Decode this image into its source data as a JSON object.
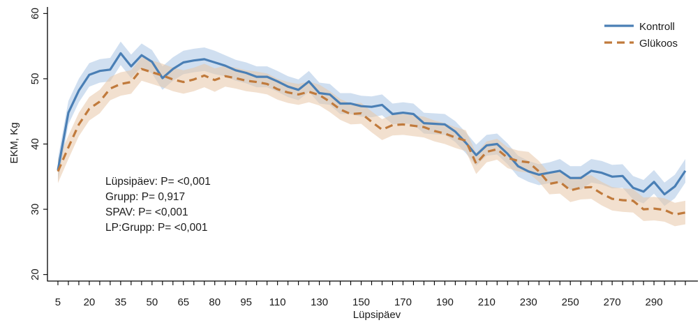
{
  "chart_data": {
    "type": "line",
    "xlabel": "Lüpsipäev",
    "ylabel": "EKM, Kg",
    "xlim": [
      0,
      311
    ],
    "ylim": [
      19,
      61
    ],
    "x_ticks": [
      5,
      20,
      35,
      50,
      65,
      80,
      95,
      110,
      130,
      150,
      170,
      190,
      210,
      230,
      250,
      270,
      290
    ],
    "x_minor_ticks": [
      5,
      10,
      15,
      20,
      25,
      30,
      35,
      40,
      45,
      50,
      55,
      60,
      65,
      70,
      75,
      80,
      85,
      90,
      95,
      100,
      105,
      110,
      115,
      120,
      125,
      130,
      135,
      140,
      145,
      150,
      155,
      160,
      165,
      170,
      175,
      180,
      185,
      190,
      195,
      200,
      205,
      210,
      215,
      220,
      225,
      230,
      235,
      240,
      245,
      250,
      255,
      260,
      265,
      270,
      275,
      280,
      285,
      290,
      295,
      300,
      305
    ],
    "y_ticks": [
      20,
      30,
      40,
      50,
      60
    ],
    "legend_position": "top-right",
    "grid": false,
    "x": [
      5,
      10,
      15,
      20,
      25,
      30,
      35,
      40,
      45,
      50,
      55,
      60,
      65,
      70,
      75,
      80,
      85,
      90,
      95,
      100,
      105,
      110,
      115,
      120,
      125,
      130,
      135,
      140,
      145,
      150,
      155,
      160,
      165,
      170,
      175,
      180,
      185,
      190,
      195,
      200,
      205,
      210,
      215,
      220,
      225,
      230,
      235,
      240,
      245,
      250,
      255,
      260,
      265,
      270,
      275,
      280,
      285,
      290,
      295,
      300,
      305
    ],
    "series": [
      {
        "name": "Kontroll",
        "color": "#4a7fb5",
        "band_color": "#a9c4e3",
        "dash": "solid",
        "values": [
          36.0,
          44.8,
          48.2,
          50.6,
          51.2,
          51.4,
          53.9,
          51.9,
          53.6,
          52.6,
          50.1,
          51.5,
          52.5,
          52.8,
          53.0,
          52.5,
          52.0,
          51.3,
          50.9,
          50.3,
          50.3,
          49.6,
          48.8,
          48.3,
          49.6,
          47.8,
          47.6,
          46.2,
          46.2,
          45.8,
          45.7,
          46.0,
          44.6,
          44.8,
          44.6,
          43.2,
          43.1,
          43.0,
          41.9,
          40.2,
          38.3,
          39.8,
          40.0,
          38.5,
          36.6,
          35.8,
          35.3,
          35.6,
          35.9,
          34.8,
          34.8,
          35.9,
          35.6,
          35.0,
          35.1,
          33.3,
          32.7,
          34.2,
          32.3,
          33.5,
          35.9
        ],
        "band_halfwidth": [
          1.8,
          1.8,
          1.8,
          1.8,
          1.8,
          1.8,
          1.8,
          1.8,
          1.8,
          1.8,
          1.8,
          1.8,
          1.8,
          1.8,
          1.8,
          1.8,
          1.6,
          1.6,
          1.6,
          1.6,
          1.6,
          1.6,
          1.6,
          1.6,
          1.6,
          1.6,
          1.6,
          1.6,
          1.6,
          1.6,
          1.6,
          1.6,
          1.6,
          1.6,
          1.6,
          1.6,
          1.6,
          1.6,
          1.6,
          1.6,
          1.6,
          1.6,
          1.6,
          1.6,
          1.6,
          1.6,
          1.6,
          1.6,
          1.8,
          1.8,
          1.8,
          1.8,
          1.8,
          1.8,
          1.8,
          1.8,
          1.8,
          1.8,
          1.8,
          1.8,
          1.8
        ]
      },
      {
        "name": "Glükoos",
        "color": "#c07a3c",
        "band_color": "#e8c6a8",
        "dash": "dashed",
        "values": [
          35.8,
          39.5,
          43.0,
          45.4,
          46.5,
          48.5,
          49.2,
          49.5,
          51.5,
          51.0,
          50.5,
          49.9,
          49.5,
          49.9,
          50.5,
          49.8,
          50.4,
          50.1,
          49.7,
          49.5,
          49.2,
          48.4,
          47.9,
          47.6,
          48.0,
          47.5,
          46.5,
          45.3,
          44.6,
          44.7,
          43.4,
          42.2,
          42.9,
          43.0,
          42.8,
          42.6,
          42.0,
          41.6,
          41.0,
          40.5,
          37.0,
          38.8,
          39.2,
          37.9,
          37.4,
          37.2,
          35.8,
          33.9,
          34.2,
          32.9,
          33.3,
          33.4,
          32.4,
          31.6,
          31.4,
          31.3,
          30.0,
          30.1,
          29.9,
          29.2,
          29.5
        ],
        "band_halfwidth": [
          1.8,
          1.8,
          1.8,
          1.8,
          1.8,
          1.8,
          1.8,
          1.8,
          1.8,
          1.8,
          1.8,
          1.8,
          1.8,
          1.8,
          1.8,
          1.8,
          1.6,
          1.6,
          1.6,
          1.6,
          1.6,
          1.6,
          1.6,
          1.6,
          1.6,
          1.6,
          1.6,
          1.6,
          1.6,
          1.6,
          1.6,
          1.6,
          1.6,
          1.6,
          1.6,
          1.6,
          1.6,
          1.6,
          1.6,
          1.6,
          1.6,
          1.6,
          1.6,
          1.6,
          1.6,
          1.6,
          1.6,
          1.6,
          1.8,
          1.8,
          1.8,
          1.8,
          1.8,
          1.8,
          1.8,
          1.8,
          1.8,
          1.8,
          1.8,
          1.8,
          1.8
        ]
      }
    ],
    "annotations": [
      "Lüpsipäev: P= <0,001",
      "Grupp: P= 0,917",
      "SPAV: P= <0,001",
      "LP:Grupp: P= <0,001"
    ]
  }
}
